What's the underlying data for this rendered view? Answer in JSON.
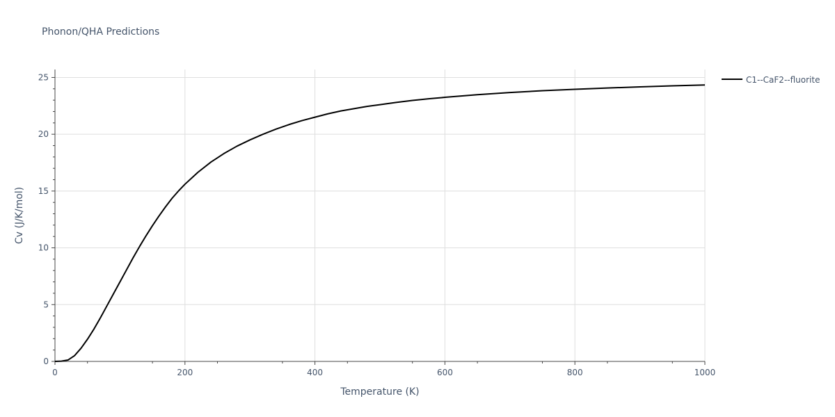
{
  "chart_data": {
    "type": "line",
    "title": "Phonon/QHA Predictions",
    "xlabel": "Temperature (K)",
    "ylabel": "Cv (J/K/mol)",
    "xlim": [
      0,
      1000
    ],
    "ylim": [
      0,
      25.7
    ],
    "x_ticks": [
      0,
      200,
      400,
      600,
      800,
      1000
    ],
    "x_tick_labels": [
      "0",
      "200",
      "400",
      "600",
      "800",
      "1000"
    ],
    "y_ticks": [
      0,
      5,
      10,
      15,
      20,
      25
    ],
    "y_tick_labels": [
      "0",
      "5",
      "10",
      "15",
      "20",
      "25"
    ],
    "grid": true,
    "legend_position": "top-right",
    "series": [
      {
        "name": "C1--CaF2--fluorite",
        "color": "#000000",
        "x": [
          0,
          10,
          20,
          30,
          40,
          50,
          60,
          70,
          80,
          90,
          100,
          110,
          120,
          130,
          140,
          150,
          160,
          170,
          180,
          190,
          200,
          220,
          240,
          260,
          280,
          300,
          320,
          340,
          360,
          380,
          400,
          420,
          440,
          460,
          480,
          500,
          525,
          550,
          575,
          600,
          650,
          700,
          750,
          800,
          850,
          900,
          950,
          1000
        ],
        "y": [
          0,
          0.02,
          0.12,
          0.5,
          1.15,
          1.95,
          2.85,
          3.85,
          4.9,
          5.95,
          7.0,
          8.05,
          9.1,
          10.1,
          11.05,
          11.95,
          12.8,
          13.6,
          14.35,
          15.0,
          15.6,
          16.65,
          17.55,
          18.3,
          18.95,
          19.5,
          20.0,
          20.45,
          20.85,
          21.2,
          21.5,
          21.8,
          22.05,
          22.25,
          22.45,
          22.6,
          22.8,
          22.98,
          23.12,
          23.25,
          23.48,
          23.67,
          23.83,
          23.96,
          24.07,
          24.17,
          24.26,
          24.34
        ]
      }
    ]
  }
}
